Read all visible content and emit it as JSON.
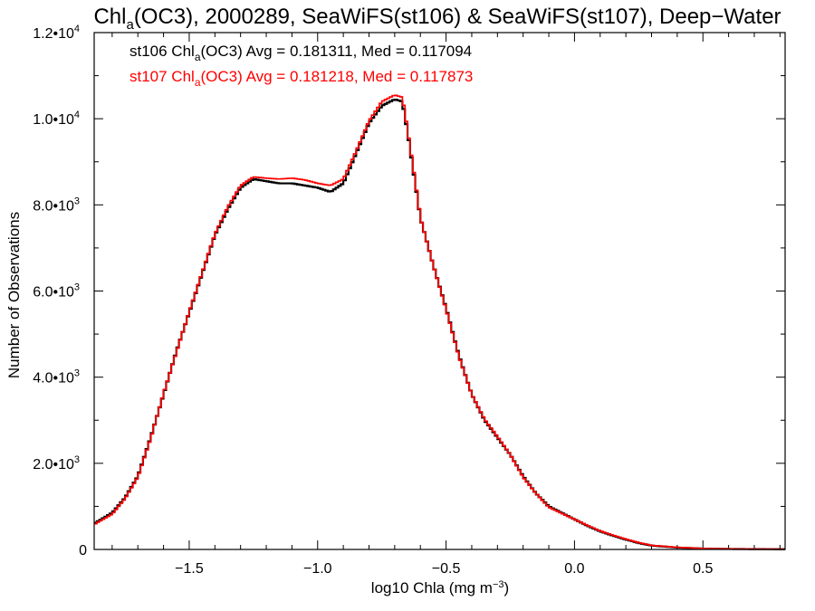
{
  "chart_data": {
    "type": "line",
    "title": {
      "pre": "Chl",
      "sub": "a",
      "post": "(OC3), 2000289, SeaWiFS(st106) & SeaWiFS(st107), Deep−Water"
    },
    "xlabel": {
      "pre": "log10 Chla (mg m",
      "sup": "−3",
      "post": ")"
    },
    "ylabel": "Number of Observations",
    "xlim": [
      -1.87,
      0.82
    ],
    "ylim": [
      0,
      12000
    ],
    "x_ticks": [
      {
        "value": -1.5,
        "label": "−1.5"
      },
      {
        "value": -1.0,
        "label": "−1.0"
      },
      {
        "value": -0.5,
        "label": "−0.5"
      },
      {
        "value": 0.0,
        "label": "0.0"
      },
      {
        "value": 0.5,
        "label": "0.5"
      }
    ],
    "y_ticks": [
      {
        "value": 0,
        "mant": "0",
        "exp": ""
      },
      {
        "value": 2000,
        "mant": "2.0•10",
        "exp": "3"
      },
      {
        "value": 4000,
        "mant": "4.0•10",
        "exp": "3"
      },
      {
        "value": 6000,
        "mant": "6.0•10",
        "exp": "3"
      },
      {
        "value": 8000,
        "mant": "8.0•10",
        "exp": "3"
      },
      {
        "value": 10000,
        "mant": "1.0•10",
        "exp": "4"
      },
      {
        "value": 12000,
        "mant": "1.2•10",
        "exp": "4"
      }
    ],
    "grid": false,
    "annotations": [
      {
        "pre": "st106 Chl",
        "sub": "a",
        "post": "(OC3) Avg = 0.181311, Med = 0.117094",
        "color": "#000000"
      },
      {
        "pre": "st107 Chl",
        "sub": "a",
        "post": "(OC3) Avg = 0.181218, Med = 0.117873",
        "color": "#ff0000"
      }
    ],
    "series": [
      {
        "color": "#000000",
        "x": [
          -1.87,
          -1.8,
          -1.75,
          -1.7,
          -1.65,
          -1.6,
          -1.55,
          -1.5,
          -1.45,
          -1.4,
          -1.35,
          -1.3,
          -1.25,
          -1.2,
          -1.15,
          -1.1,
          -1.05,
          -1.0,
          -0.95,
          -0.9,
          -0.85,
          -0.8,
          -0.75,
          -0.7,
          -0.67,
          -0.65,
          -0.62,
          -0.6,
          -0.55,
          -0.5,
          -0.45,
          -0.4,
          -0.35,
          -0.3,
          -0.25,
          -0.2,
          -0.15,
          -0.1,
          -0.05,
          0.0,
          0.05,
          0.1,
          0.15,
          0.2,
          0.25,
          0.3,
          0.4,
          0.5,
          0.6,
          0.7,
          0.82
        ],
        "y": [
          600,
          850,
          1200,
          1700,
          2600,
          3600,
          4600,
          5500,
          6400,
          7300,
          7900,
          8400,
          8600,
          8550,
          8500,
          8500,
          8450,
          8400,
          8300,
          8500,
          9200,
          9900,
          10300,
          10450,
          10400,
          9700,
          8500,
          7700,
          6600,
          5600,
          4500,
          3600,
          3000,
          2600,
          2200,
          1700,
          1300,
          1000,
          850,
          700,
          550,
          420,
          320,
          230,
          150,
          90,
          45,
          20,
          12,
          8,
          5
        ]
      },
      {
        "color": "#ff0000",
        "x": [
          -1.87,
          -1.8,
          -1.75,
          -1.7,
          -1.65,
          -1.6,
          -1.55,
          -1.5,
          -1.45,
          -1.4,
          -1.35,
          -1.3,
          -1.25,
          -1.2,
          -1.15,
          -1.1,
          -1.05,
          -1.0,
          -0.95,
          -0.9,
          -0.85,
          -0.8,
          -0.75,
          -0.7,
          -0.67,
          -0.65,
          -0.62,
          -0.6,
          -0.55,
          -0.5,
          -0.45,
          -0.4,
          -0.35,
          -0.3,
          -0.25,
          -0.2,
          -0.15,
          -0.1,
          -0.05,
          0.0,
          0.05,
          0.1,
          0.15,
          0.2,
          0.25,
          0.3,
          0.4,
          0.5,
          0.6,
          0.7,
          0.82
        ],
        "y": [
          580,
          820,
          1180,
          1680,
          2580,
          3620,
          4580,
          5520,
          6420,
          7320,
          7950,
          8450,
          8650,
          8620,
          8600,
          8620,
          8580,
          8500,
          8450,
          8600,
          9250,
          9950,
          10400,
          10550,
          10500,
          9750,
          8550,
          7700,
          6600,
          5580,
          4480,
          3600,
          3020,
          2620,
          2200,
          1680,
          1300,
          980,
          840,
          700,
          560,
          430,
          330,
          240,
          160,
          95,
          50,
          22,
          13,
          9,
          6
        ]
      }
    ]
  }
}
